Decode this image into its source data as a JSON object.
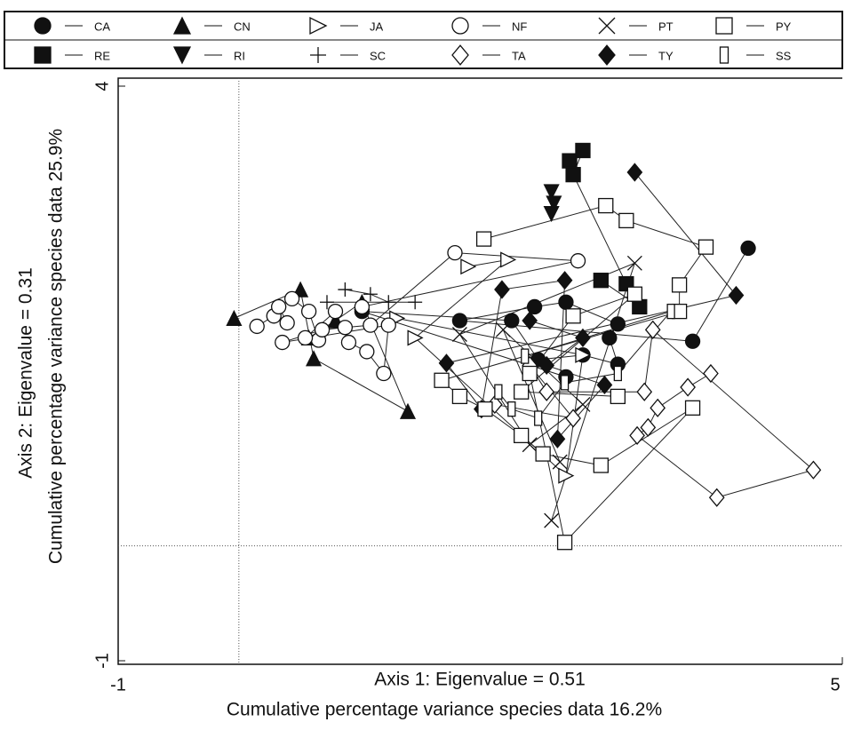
{
  "chart_data": {
    "type": "scatter",
    "xlabel": [
      "Axis 1: Eigenvalue = 0.51",
      "Cumulative percentage variance species data 16.2%"
    ],
    "ylabel": [
      "Axis 2: Eigenvalue = 0.31",
      "Cumulative percentage variance species data 25.9%"
    ],
    "xlim": [
      -1,
      5
    ],
    "ylim": [
      -1,
      4
    ],
    "xticks": [
      -1,
      5
    ],
    "yticks": [
      -1,
      4
    ],
    "zero_lines": true,
    "connect_points": true,
    "legend": "top",
    "series": [
      {
        "name": "CA",
        "marker": "circle-filled",
        "color": "#111",
        "x": [
          4.22,
          3.76,
          1.83,
          2.45,
          2.71,
          3.14,
          3.07,
          3.14,
          2.85,
          2.48,
          2.26,
          1.02,
          2.71
        ],
        "values": [
          2.59,
          1.78,
          1.96,
          2.08,
          2.12,
          1.93,
          1.81,
          1.58,
          1.66,
          1.62,
          1.96,
          2.04,
          1.47
        ]
      },
      {
        "name": "RE",
        "marker": "square-filled",
        "color": "#111",
        "x": [
          2.74,
          2.85,
          2.77,
          3.21,
          3.32,
          3.0
        ],
        "values": [
          3.35,
          3.44,
          3.23,
          2.28,
          2.08,
          2.31
        ]
      },
      {
        "name": "CN",
        "marker": "triangle-up",
        "color": "#111",
        "x": [
          -0.04,
          0.51,
          0.62,
          1.4,
          1.02,
          0.8,
          0.58
        ],
        "values": [
          1.98,
          2.23,
          1.63,
          1.17,
          2.12,
          1.96,
          1.81
        ]
      },
      {
        "name": "RI",
        "marker": "triangle-down",
        "color": "#111",
        "x": [
          2.59,
          2.61,
          2.59
        ],
        "values": [
          3.08,
          2.98,
          2.89
        ]
      },
      {
        "name": "JA",
        "marker": "triangle-right",
        "color": "#111",
        "x": [
          1.9,
          2.23,
          1.46,
          2.71,
          2.85,
          1.31
        ],
        "values": [
          2.43,
          2.49,
          1.81,
          0.61,
          1.66,
          1.98
        ]
      },
      {
        "name": "SC",
        "marker": "plus",
        "color": "#111",
        "x": [
          0.88,
          1.09,
          1.24,
          0.73,
          1.46
        ],
        "values": [
          2.23,
          2.19,
          2.12,
          2.12,
          2.12
        ]
      },
      {
        "name": "NF",
        "marker": "circle-open",
        "color": "#111",
        "x": [
          0.15,
          0.29,
          0.4,
          0.33,
          0.44,
          0.58,
          0.66,
          0.55,
          0.8,
          0.91,
          1.06,
          1.2,
          1.24,
          0.36,
          0.69,
          0.88,
          1.09,
          1.79,
          2.81,
          1.02
        ],
        "values": [
          1.91,
          2.0,
          1.94,
          2.08,
          2.15,
          2.04,
          1.79,
          1.81,
          2.04,
          1.77,
          1.69,
          1.5,
          1.92,
          1.77,
          1.88,
          1.9,
          1.92,
          2.55,
          2.48,
          2.08
        ]
      },
      {
        "name": "TA",
        "marker": "diamond-open",
        "color": "#111",
        "x": [
          3.91,
          3.72,
          3.47,
          3.39,
          3.3,
          3.96,
          4.76,
          3.43,
          3.36,
          2.55,
          2.41,
          2.77,
          2.12
        ],
        "values": [
          1.5,
          1.38,
          1.2,
          1.03,
          0.96,
          0.42,
          0.66,
          1.88,
          1.34,
          1.34,
          1.57,
          1.11,
          1.23
        ]
      },
      {
        "name": "PT",
        "marker": "cross",
        "color": "#111",
        "x": [
          2.59,
          3.28,
          1.83,
          2.41,
          2.85,
          2.19,
          2.66
        ],
        "values": [
          0.22,
          2.46,
          1.84,
          0.88,
          1.23,
          1.88,
          0.73
        ]
      },
      {
        "name": "TY",
        "marker": "diamond-filled",
        "color": "#111",
        "x": [
          3.28,
          4.12,
          1.72,
          2.01,
          2.18,
          2.7,
          2.64,
          3.03,
          2.55,
          2.85,
          2.41
        ],
        "values": [
          3.25,
          2.18,
          1.59,
          1.19,
          2.23,
          2.31,
          0.93,
          1.4,
          1.57,
          1.81,
          1.96
        ]
      },
      {
        "name": "PY",
        "marker": "square-open",
        "color": "#111",
        "x": [
          2.03,
          3.04,
          3.21,
          3.87,
          3.65,
          3.65,
          1.68,
          1.83,
          2.04,
          2.34,
          2.52,
          3.0,
          3.76,
          2.7,
          2.41,
          2.77,
          3.28,
          2.34,
          3.14
        ],
        "values": [
          2.67,
          2.96,
          2.83,
          2.6,
          2.27,
          2.04,
          1.44,
          1.3,
          1.19,
          0.96,
          0.8,
          0.7,
          1.2,
          0.03,
          1.5,
          2.0,
          2.19,
          1.34,
          1.3
        ]
      },
      {
        "name": "SS",
        "marker": "rect-narrow",
        "color": "#111",
        "x": [
          2.15,
          2.26,
          2.48,
          2.7,
          3.14,
          3.58,
          2.37
        ],
        "values": [
          1.34,
          1.19,
          1.11,
          1.42,
          1.5,
          2.04,
          1.65
        ]
      }
    ]
  }
}
